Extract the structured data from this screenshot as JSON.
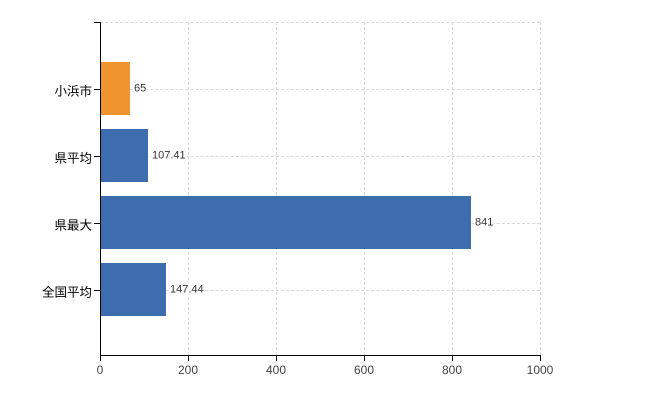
{
  "chart_data": {
    "type": "bar",
    "orientation": "horizontal",
    "title": "",
    "xlabel": "",
    "ylabel": "",
    "categories": [
      "小浜市",
      "県平均",
      "県最大",
      "全国平均"
    ],
    "values": [
      65,
      107.41,
      841,
      147.44
    ],
    "value_labels": [
      "65",
      "107.41",
      "841",
      "147.44"
    ],
    "bar_colors": [
      "#f0942f",
      "#3d6dae",
      "#3d6dae",
      "#3d6dae"
    ],
    "x_ticks": [
      0,
      200,
      400,
      600,
      800,
      1000
    ],
    "x_tick_labels": [
      "0",
      "200",
      "400",
      "600",
      "800",
      "1000"
    ],
    "xlim": [
      0,
      1000
    ],
    "grid": "on",
    "grid_style": "dashed",
    "legend": "none"
  },
  "colors": {
    "background": "#ffffff",
    "axis": "#000000",
    "grid": "#d9d9d9",
    "bar_orange": "#f0942f",
    "bar_blue": "#3d6dae",
    "category_label": "#000000",
    "value_label": "#333333",
    "tick_label": "#444444"
  }
}
